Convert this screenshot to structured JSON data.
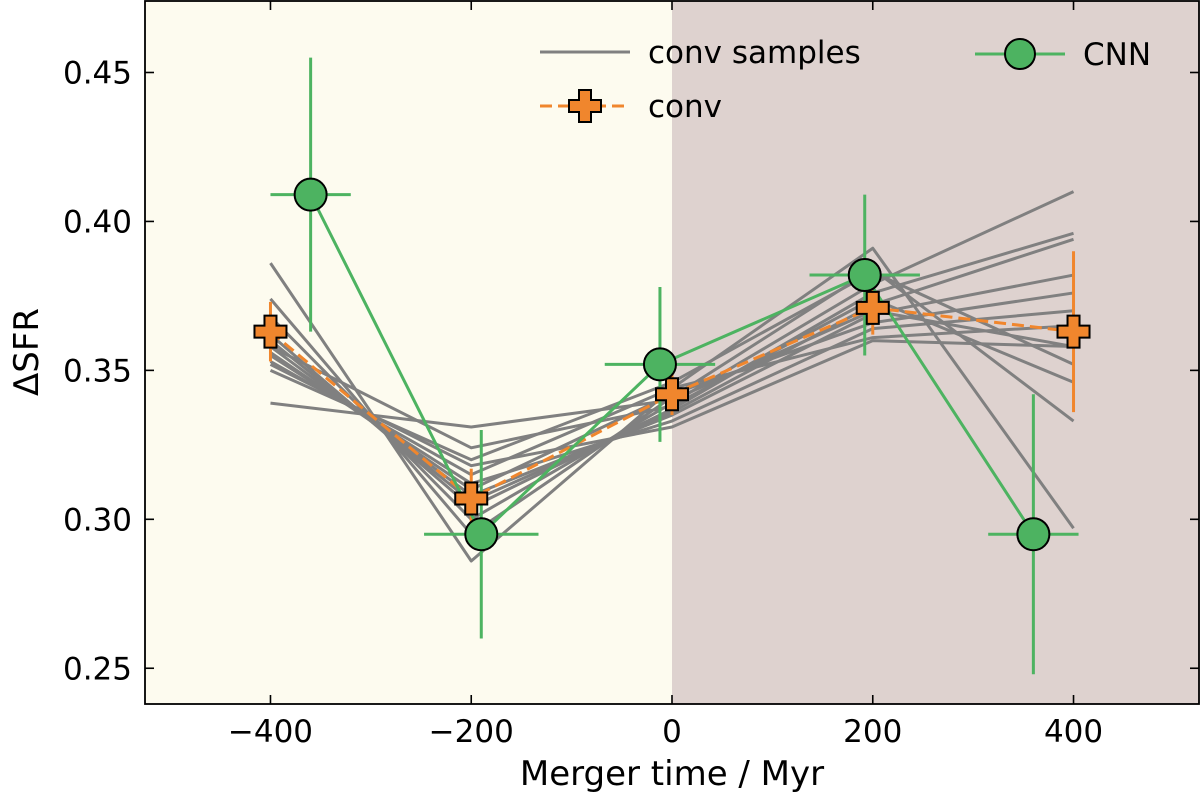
{
  "chart_data": {
    "type": "line",
    "xlabel": "Merger time / Myr",
    "ylabel": "ΔSFR",
    "xlim": [
      -525,
      525
    ],
    "ylim": [
      0.238,
      0.474
    ],
    "xticks": [
      -400,
      -200,
      0,
      200,
      400
    ],
    "xtick_labels": [
      "−400",
      "−200",
      "0",
      "200",
      "400"
    ],
    "yticks": [
      0.25,
      0.3,
      0.35,
      0.4,
      0.45
    ],
    "ytick_labels": [
      "0.25",
      "0.30",
      "0.35",
      "0.40",
      "0.45"
    ],
    "background_regions": [
      {
        "x_from": -525,
        "x_to": 0,
        "color": "#fdfbef"
      },
      {
        "x_from": 0,
        "x_to": 525,
        "color": "#ded2cf"
      }
    ],
    "colors": {
      "samples": "#808080",
      "conv": "#f0862d",
      "cnn": "#4db361",
      "marker_edge": "#000000"
    },
    "samples": {
      "name": "conv samples",
      "x": [
        -400,
        -200,
        0,
        200,
        400
      ],
      "lines": [
        [
          0.386,
          0.286,
          0.344,
          0.391,
          0.297
        ],
        [
          0.374,
          0.295,
          0.341,
          0.384,
          0.333
        ],
        [
          0.368,
          0.3,
          0.339,
          0.379,
          0.41
        ],
        [
          0.362,
          0.304,
          0.337,
          0.376,
          0.396
        ],
        [
          0.36,
          0.306,
          0.336,
          0.372,
          0.394
        ],
        [
          0.358,
          0.308,
          0.335,
          0.369,
          0.382
        ],
        [
          0.356,
          0.31,
          0.342,
          0.366,
          0.376
        ],
        [
          0.355,
          0.312,
          0.333,
          0.364,
          0.37
        ],
        [
          0.353,
          0.315,
          0.344,
          0.361,
          0.365
        ],
        [
          0.352,
          0.318,
          0.331,
          0.36,
          0.358
        ],
        [
          0.35,
          0.32,
          0.346,
          0.383,
          0.352
        ],
        [
          0.358,
          0.324,
          0.338,
          0.374,
          0.346
        ],
        [
          0.339,
          0.331,
          0.34,
          0.37,
          0.358
        ]
      ]
    },
    "series": [
      {
        "name": "conv",
        "x": [
          -400,
          -200,
          0,
          200,
          400
        ],
        "y": [
          0.363,
          0.307,
          0.342,
          0.371,
          0.363
        ],
        "yerr": [
          0.01,
          0.01,
          0.007,
          0.009,
          0.027
        ],
        "marker": "plus",
        "linestyle": "dashed"
      },
      {
        "name": "CNN",
        "x": [
          -360,
          -190,
          -12,
          192,
          360
        ],
        "y": [
          0.409,
          0.295,
          0.352,
          0.382,
          0.295
        ],
        "xerr": [
          40,
          57,
          55,
          55,
          45
        ],
        "yerr": [
          0.046,
          0.035,
          0.026,
          0.027,
          0.047
        ],
        "marker": "circle",
        "linestyle": "solid"
      }
    ],
    "legend": {
      "position": "top-right",
      "entries": [
        "conv samples",
        "conv",
        "CNN"
      ]
    }
  }
}
